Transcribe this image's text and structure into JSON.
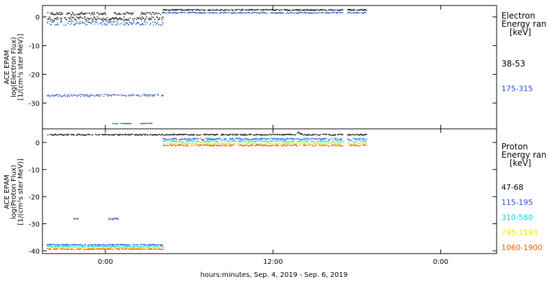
{
  "chart_data": [
    {
      "type": "scatter",
      "instrument_label": "ACE EPAM",
      "ylabel_lines": [
        "log(Electron Flux)",
        "[1/(cm²s ster MeV)]"
      ],
      "ylim": [
        -39,
        4
      ],
      "yticks": [
        0,
        -10,
        -20,
        -30
      ],
      "legend_header": [
        "Electron",
        "Energy ran",
        "[keV]"
      ],
      "series": [
        {
          "name": "38-53",
          "color": "#000000",
          "segments": [
            {
              "t": [
                -4.2,
                -3.0
              ],
              "y": 1.3,
              "jitter": 0.4
            },
            {
              "t": [
                -2.8,
                0.0
              ],
              "y": 1.3,
              "jitter": 0.5
            },
            {
              "t": [
                0.6,
                2.0
              ],
              "y": 1.4,
              "jitter": 0.4
            },
            {
              "t": [
                2.5,
                4.1
              ],
              "y": 1.3,
              "jitter": 0.5
            },
            {
              "t": [
                -4.2,
                4.1
              ],
              "y": -0.4,
              "jitter": 0.6
            },
            {
              "t": [
                4.1,
                17.0
              ],
              "y": 2.6,
              "jitter": 0.2
            },
            {
              "t": [
                17.3,
                18.7
              ],
              "y": 2.6,
              "jitter": 0.2
            }
          ]
        },
        {
          "name": "175-315",
          "color": "#1f4fd0",
          "segments": [
            {
              "t": [
                -4.2,
                4.1
              ],
              "y": -2.0,
              "jitter": 0.7
            },
            {
              "t": [
                -4.2,
                4.1
              ],
              "y": -27.2,
              "jitter": 0.4
            },
            {
              "t": [
                0.5,
                1.9
              ],
              "y": -37.0,
              "jitter": 0.1
            },
            {
              "t": [
                2.5,
                3.4
              ],
              "y": -37.0,
              "jitter": 0.1
            },
            {
              "t": [
                4.1,
                17.0
              ],
              "y": 1.6,
              "jitter": 0.2
            },
            {
              "t": [
                17.3,
                18.7
              ],
              "y": 1.6,
              "jitter": 0.2
            }
          ]
        }
      ]
    },
    {
      "type": "scatter",
      "instrument_label": "ACE EPAM",
      "ylabel_lines": [
        "log(Proton Flux)",
        "[1/(cm²s ster MeV)]"
      ],
      "ylim": [
        -41,
        5
      ],
      "yticks": [
        0,
        -10,
        -20,
        -30,
        -40
      ],
      "legend_header": [
        "Proton",
        "Energy ran",
        "[keV]"
      ],
      "series": [
        {
          "name": "47-68",
          "color": "#000000",
          "segments": [
            {
              "t": [
                -4.2,
                13.7
              ],
              "y": 3.0,
              "jitter": 0.2
            },
            {
              "t": [
                13.7,
                14.1
              ],
              "y": 3.6,
              "jitter": 0.4
            },
            {
              "t": [
                14.1,
                17.0
              ],
              "y": 3.0,
              "jitter": 0.2
            },
            {
              "t": [
                17.3,
                18.7
              ],
              "y": 3.0,
              "jitter": 0.2
            }
          ]
        },
        {
          "name": "115-195",
          "color": "#1f4fd0",
          "segments": [
            {
              "t": [
                -2.3,
                -2.0
              ],
              "y": -28.0,
              "jitter": 0.3
            },
            {
              "t": [
                0.2,
                1.0
              ],
              "y": -28.0,
              "jitter": 0.4
            },
            {
              "t": [
                -4.2,
                4.1
              ],
              "y": -37.6,
              "jitter": 0.2
            },
            {
              "t": [
                4.1,
                17.0
              ],
              "y": 1.4,
              "jitter": 0.3
            },
            {
              "t": [
                17.3,
                18.7
              ],
              "y": 1.4,
              "jitter": 0.3
            }
          ]
        },
        {
          "name": "310-580",
          "color": "#00d8e8",
          "segments": [
            {
              "t": [
                -4.2,
                4.1
              ],
              "y": -38.2,
              "jitter": 0.2
            },
            {
              "t": [
                4.1,
                17.0
              ],
              "y": 0.6,
              "jitter": 0.3
            },
            {
              "t": [
                17.3,
                18.7
              ],
              "y": 0.6,
              "jitter": 0.3
            }
          ]
        },
        {
          "name": "795-1193",
          "color": "#e8e800",
          "segments": [
            {
              "t": [
                -4.2,
                4.1
              ],
              "y": -38.7,
              "jitter": 0.2
            },
            {
              "t": [
                4.1,
                17.0
              ],
              "y": -0.2,
              "jitter": 0.3
            },
            {
              "t": [
                17.3,
                18.7
              ],
              "y": -0.2,
              "jitter": 0.3
            }
          ]
        },
        {
          "name": "1060-1900",
          "color": "#e85a00",
          "segments": [
            {
              "t": [
                -4.2,
                4.1
              ],
              "y": -39.2,
              "jitter": 0.2
            },
            {
              "t": [
                4.1,
                17.0
              ],
              "y": -0.9,
              "jitter": 0.3
            },
            {
              "t": [
                17.3,
                18.7
              ],
              "y": -0.9,
              "jitter": 0.3
            }
          ]
        }
      ]
    }
  ],
  "x_axis": {
    "range_hours": [
      -4.5,
      28
    ],
    "ticks": [
      {
        "t": 0,
        "label": "0:00"
      },
      {
        "t": 12,
        "label": "12:00"
      },
      {
        "t": 24,
        "label": "0:00"
      }
    ],
    "xlabel": "hours:minutes, Sep.  4, 2019 - Sep.  6, 2019"
  }
}
